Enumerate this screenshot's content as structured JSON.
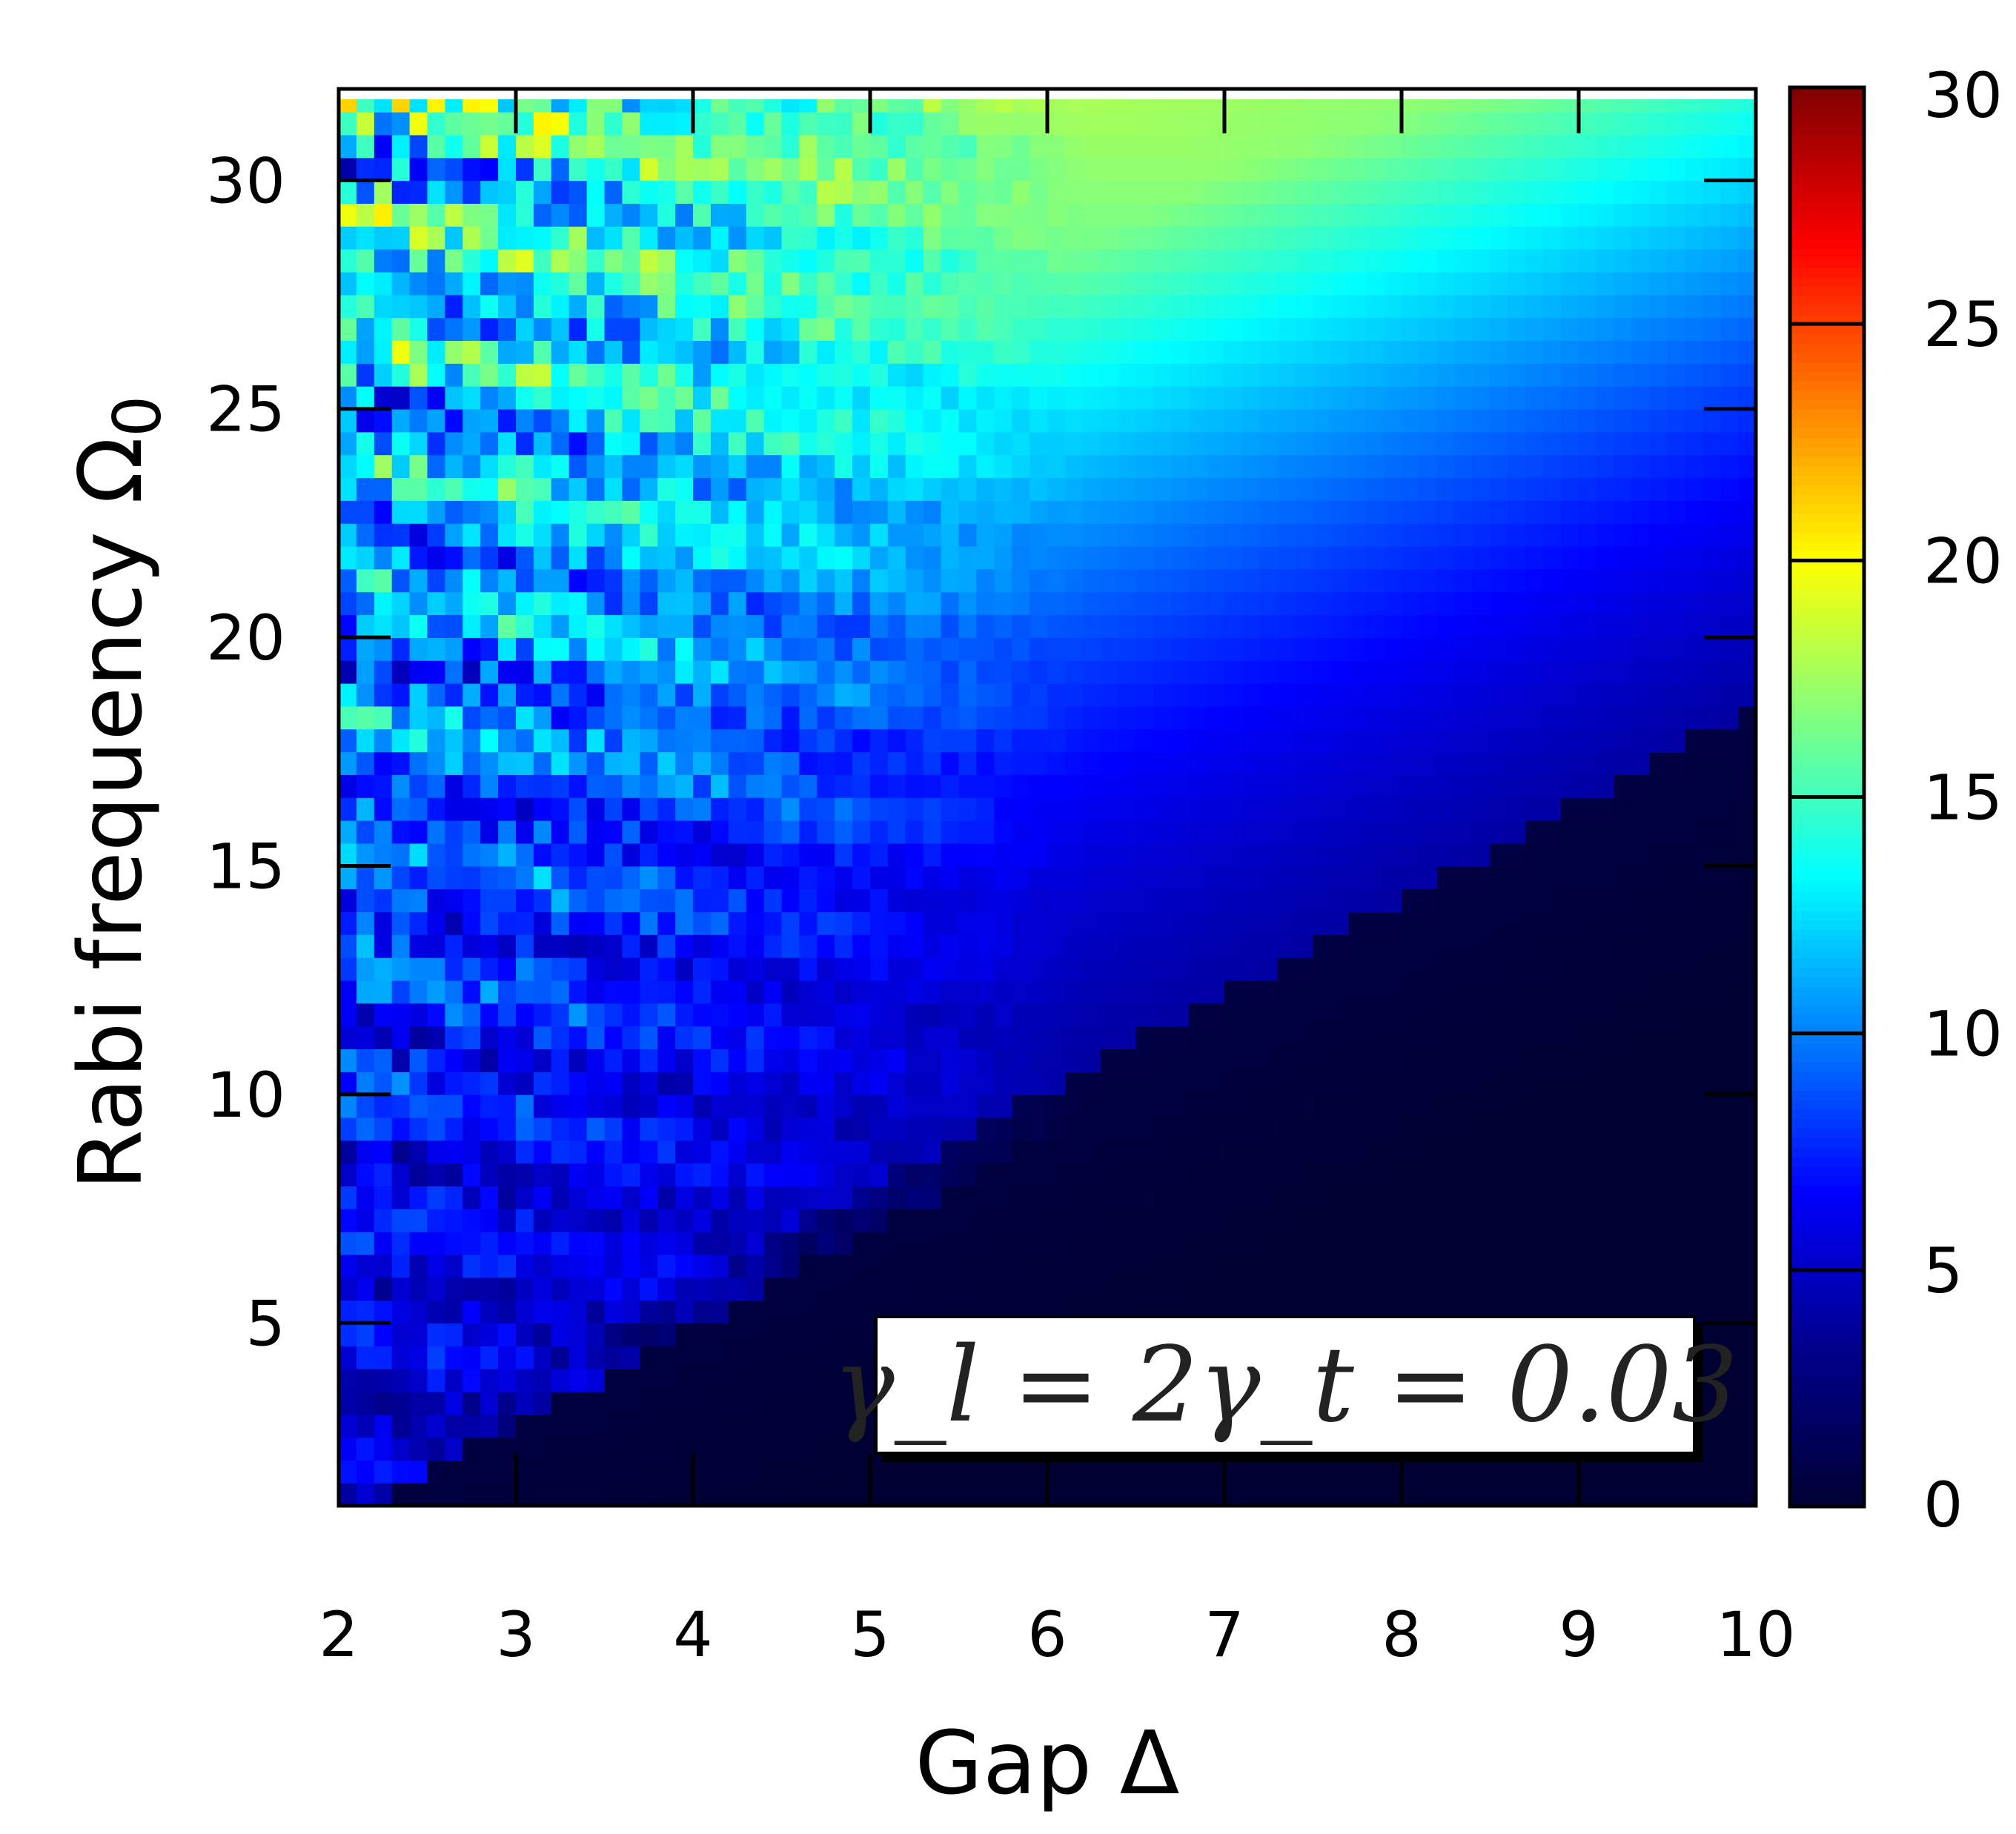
{
  "chart_data": {
    "type": "heatmap",
    "xlabel": "Gap Δ",
    "ylabel": "Rabi frequency Ω",
    "ylabel_subscript": "0",
    "xlim": [
      2,
      10
    ],
    "ylim": [
      1,
      32
    ],
    "xticks": [
      2,
      3,
      4,
      5,
      6,
      7,
      8,
      9,
      10
    ],
    "yticks": [
      5,
      10,
      15,
      20,
      25,
      30
    ],
    "colorbar": {
      "range": [
        0,
        30
      ],
      "ticks": [
        0,
        5,
        10,
        15,
        20,
        25,
        30
      ],
      "colormap": "jet",
      "stops": [
        "#000033",
        "#00008b",
        "#0000ff",
        "#0080ff",
        "#00ffff",
        "#80ff80",
        "#ffff00",
        "#ff8000",
        "#ff0000",
        "#800000"
      ]
    },
    "grid": {
      "nx": 80,
      "ny": 62,
      "description_of_values": "smooth ridge z ≈ 17·exp(-((Ω-2.1Δ-6)/9)^2)·(Ω/32) rising toward upper-right; speckled 2–20 region for Δ<6; near 0 in lower-right"
    },
    "annotation": "γ_l = 2γ_t = 0.03"
  }
}
